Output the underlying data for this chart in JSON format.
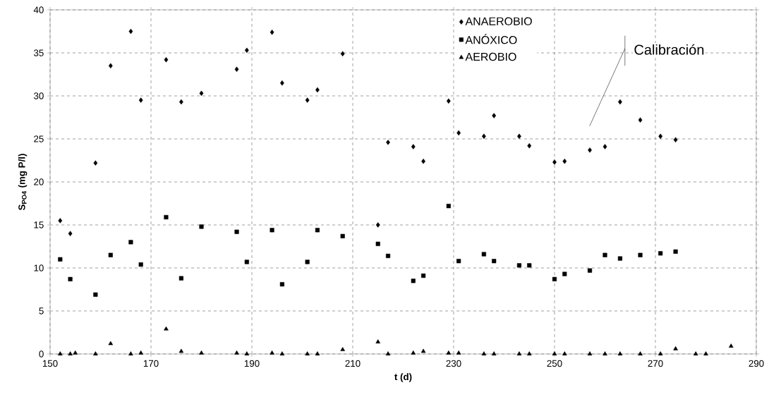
{
  "chart_data": {
    "type": "scatter",
    "xlabel": "t (d)",
    "ylabel": "S$_{PO4}$ (mg P/l)",
    "xlim": [
      150,
      290
    ],
    "ylim": [
      0,
      40
    ],
    "xticks": [
      150,
      170,
      190,
      210,
      230,
      250,
      270,
      290
    ],
    "yticks": [
      0,
      5,
      10,
      15,
      20,
      25,
      30,
      35,
      40
    ],
    "grid": true,
    "legend": "top",
    "annotations": [
      "Calibración"
    ],
    "series": [
      {
        "name": "ANAEROBIO",
        "color": "#000000",
        "marker": "diamond",
        "x": [
          152,
          154,
          159,
          162,
          166,
          168,
          173,
          176,
          180,
          187,
          189,
          194,
          196,
          201,
          203,
          208,
          215,
          217,
          222,
          224,
          229,
          231,
          236,
          238,
          243,
          245,
          250,
          252,
          257,
          260,
          263,
          267,
          271,
          274
        ],
        "values": [
          15.5,
          14.0,
          22.2,
          33.5,
          37.5,
          29.5,
          34.2,
          29.3,
          30.3,
          33.1,
          35.3,
          37.4,
          31.5,
          29.5,
          30.7,
          34.9,
          15.0,
          24.6,
          24.1,
          22.4,
          29.4,
          25.7,
          25.3,
          27.7,
          25.3,
          24.2,
          22.3,
          22.4,
          23.7,
          24.1,
          29.3,
          27.2,
          25.3,
          24.9
        ]
      },
      {
        "name": "ANÓXICO",
        "color": "#000000",
        "marker": "square",
        "x": [
          152,
          154,
          159,
          162,
          166,
          168,
          173,
          176,
          180,
          187,
          189,
          194,
          196,
          201,
          203,
          208,
          215,
          217,
          222,
          224,
          229,
          231,
          236,
          238,
          243,
          245,
          250,
          252,
          257,
          260,
          263,
          267,
          271,
          274
        ],
        "values": [
          11.0,
          8.7,
          6.9,
          11.5,
          13.0,
          10.4,
          15.9,
          8.8,
          14.8,
          14.2,
          10.7,
          14.4,
          8.1,
          10.7,
          14.4,
          13.7,
          12.8,
          11.4,
          8.5,
          9.1,
          17.2,
          10.8,
          11.6,
          10.8,
          10.3,
          10.3,
          8.7,
          9.3,
          9.7,
          11.5,
          11.1,
          11.5,
          11.7,
          11.9
        ]
      },
      {
        "name": "AEROBIO",
        "color": "#000000",
        "marker": "triangle",
        "x": [
          152,
          154,
          155,
          159,
          162,
          166,
          168,
          173,
          176,
          180,
          187,
          189,
          194,
          196,
          201,
          203,
          208,
          215,
          217,
          222,
          224,
          229,
          231,
          236,
          238,
          243,
          245,
          250,
          252,
          257,
          260,
          263,
          267,
          271,
          274,
          278,
          280,
          285
        ],
        "values": [
          0,
          0,
          0.1,
          0,
          1.2,
          0,
          0.1,
          2.9,
          0.3,
          0.1,
          0.1,
          0,
          0.1,
          0,
          0,
          0,
          0.5,
          1.4,
          0,
          0.1,
          0.3,
          0.1,
          0.1,
          0,
          0,
          0,
          0,
          0,
          0,
          0,
          0,
          0,
          0,
          0,
          0.6,
          0,
          0,
          0.9
        ]
      }
    ]
  }
}
